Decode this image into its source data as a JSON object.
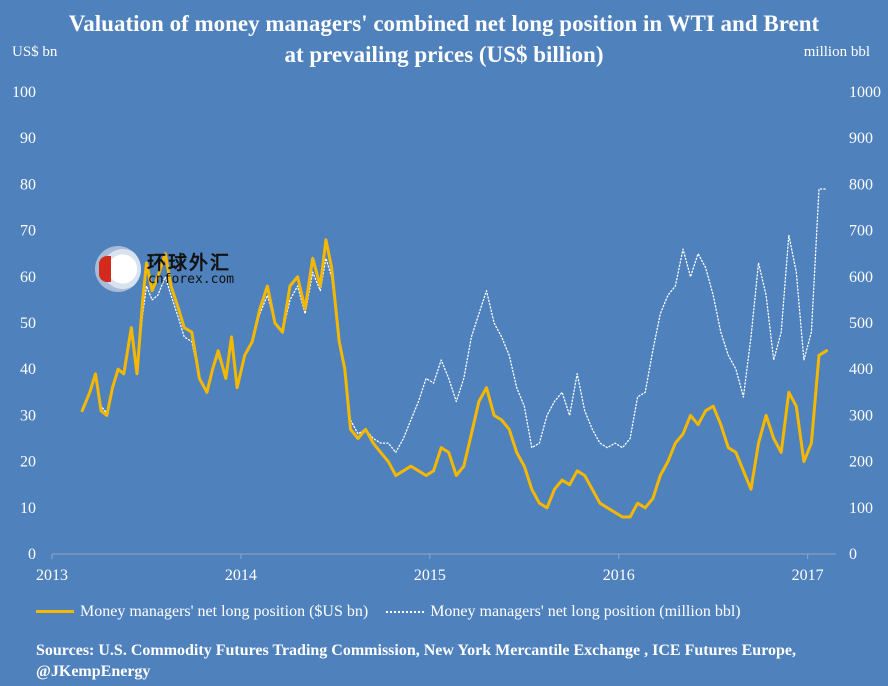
{
  "chart_data": {
    "type": "line",
    "title": "Valuation of money managers' combined net long position in WTI and Brent at prevailing prices (US$ billion)",
    "ylabel_left": "US$ bn",
    "ylabel_right": "million bbl",
    "ylim_left": [
      0,
      100
    ],
    "ylim_right": [
      0,
      1000
    ],
    "yticks_left": [
      "0",
      "10",
      "20",
      "30",
      "40",
      "50",
      "60",
      "70",
      "80",
      "90",
      "100"
    ],
    "yticks_right": [
      "0",
      "100",
      "200",
      "300",
      "400",
      "500",
      "600",
      "700",
      "800",
      "900",
      "1000"
    ],
    "xlim": [
      2013.0,
      2017.15
    ],
    "xticks": [
      "2013",
      "2014",
      "2015",
      "2016",
      "2017"
    ],
    "grid": false,
    "legend_position": "bottom",
    "series": [
      {
        "name": "Money managers' net long position ($US bn)",
        "axis": "left",
        "color": "#f5b800",
        "x": [
          2013.16,
          2013.2,
          2013.23,
          2013.26,
          2013.29,
          2013.32,
          2013.35,
          2013.38,
          2013.42,
          2013.45,
          2013.48,
          2013.5,
          2013.53,
          2013.56,
          2013.6,
          2013.63,
          2013.67,
          2013.7,
          2013.74,
          2013.78,
          2013.82,
          2013.85,
          2013.88,
          2013.92,
          2013.95,
          2013.98,
          2014.02,
          2014.06,
          2014.1,
          2014.14,
          2014.18,
          2014.22,
          2014.26,
          2014.3,
          2014.34,
          2014.38,
          2014.42,
          2014.45,
          2014.48,
          2014.52,
          2014.55,
          2014.58,
          2014.62,
          2014.66,
          2014.7,
          2014.74,
          2014.78,
          2014.82,
          2014.86,
          2014.9,
          2014.94,
          2014.98,
          2015.02,
          2015.06,
          2015.1,
          2015.14,
          2015.18,
          2015.22,
          2015.26,
          2015.3,
          2015.34,
          2015.38,
          2015.42,
          2015.46,
          2015.5,
          2015.54,
          2015.58,
          2015.62,
          2015.66,
          2015.7,
          2015.74,
          2015.78,
          2015.82,
          2015.86,
          2015.9,
          2015.94,
          2015.98,
          2016.02,
          2016.06,
          2016.1,
          2016.14,
          2016.18,
          2016.22,
          2016.26,
          2016.3,
          2016.34,
          2016.38,
          2016.42,
          2016.46,
          2016.5,
          2016.54,
          2016.58,
          2016.62,
          2016.66,
          2016.7,
          2016.74,
          2016.78,
          2016.82,
          2016.86,
          2016.9,
          2016.94,
          2016.98,
          2017.02,
          2017.06,
          2017.1
        ],
        "values": [
          31,
          35,
          39,
          31,
          30,
          36,
          40,
          39,
          49,
          39,
          55,
          63,
          57,
          60,
          65,
          58,
          53,
          49,
          48,
          38,
          35,
          40,
          44,
          38,
          47,
          36,
          43,
          46,
          53,
          58,
          50,
          48,
          58,
          60,
          53,
          64,
          58,
          68,
          62,
          46,
          40,
          27,
          25,
          27,
          24,
          22,
          20,
          17,
          18,
          19,
          18,
          17,
          18,
          23,
          22,
          17,
          19,
          26,
          33,
          36,
          30,
          29,
          27,
          22,
          19,
          14,
          11,
          10,
          14,
          16,
          15,
          18,
          17,
          14,
          11,
          10,
          9,
          8,
          8,
          11,
          10,
          12,
          17,
          20,
          24,
          26,
          30,
          28,
          31,
          32,
          28,
          23,
          22,
          18,
          14,
          24,
          30,
          25,
          22,
          35,
          32,
          20,
          24,
          43,
          44
        ]
      },
      {
        "name": "Money managers' net long position (million bbl)",
        "axis": "right",
        "color": "#ffffff",
        "x": [
          2013.16,
          2013.2,
          2013.23,
          2013.26,
          2013.29,
          2013.32,
          2013.35,
          2013.38,
          2013.42,
          2013.45,
          2013.48,
          2013.5,
          2013.53,
          2013.56,
          2013.6,
          2013.63,
          2013.67,
          2013.7,
          2013.74,
          2013.78,
          2013.82,
          2013.85,
          2013.88,
          2013.92,
          2013.95,
          2013.98,
          2014.02,
          2014.06,
          2014.1,
          2014.14,
          2014.18,
          2014.22,
          2014.26,
          2014.3,
          2014.34,
          2014.38,
          2014.42,
          2014.45,
          2014.48,
          2014.52,
          2014.55,
          2014.58,
          2014.62,
          2014.66,
          2014.7,
          2014.74,
          2014.78,
          2014.82,
          2014.86,
          2014.9,
          2014.94,
          2014.98,
          2015.02,
          2015.06,
          2015.1,
          2015.14,
          2015.18,
          2015.22,
          2015.26,
          2015.3,
          2015.34,
          2015.38,
          2015.42,
          2015.46,
          2015.5,
          2015.54,
          2015.58,
          2015.62,
          2015.66,
          2015.7,
          2015.74,
          2015.78,
          2015.82,
          2015.86,
          2015.9,
          2015.94,
          2015.98,
          2016.02,
          2016.06,
          2016.1,
          2016.14,
          2016.18,
          2016.22,
          2016.26,
          2016.3,
          2016.34,
          2016.38,
          2016.42,
          2016.46,
          2016.5,
          2016.54,
          2016.58,
          2016.62,
          2016.66,
          2016.7,
          2016.74,
          2016.78,
          2016.82,
          2016.86,
          2016.9,
          2016.94,
          2016.98,
          2017.02,
          2017.06,
          2017.1
        ],
        "values": [
          315,
          350,
          385,
          320,
          305,
          365,
          400,
          390,
          480,
          400,
          520,
          580,
          550,
          560,
          600,
          560,
          510,
          470,
          460,
          380,
          350,
          400,
          430,
          380,
          460,
          360,
          430,
          460,
          520,
          560,
          500,
          480,
          550,
          580,
          520,
          610,
          570,
          640,
          600,
          460,
          400,
          290,
          260,
          270,
          250,
          240,
          240,
          220,
          250,
          290,
          330,
          380,
          370,
          420,
          380,
          330,
          380,
          470,
          520,
          570,
          500,
          470,
          430,
          360,
          320,
          230,
          240,
          300,
          330,
          350,
          300,
          390,
          310,
          270,
          240,
          230,
          240,
          230,
          250,
          340,
          350,
          440,
          520,
          560,
          580,
          660,
          600,
          650,
          620,
          560,
          480,
          430,
          400,
          340,
          470,
          630,
          560,
          420,
          480,
          690,
          610,
          420,
          480,
          790,
          790
        ]
      }
    ]
  },
  "units": {
    "left": "US$ bn",
    "right": "million bbl"
  },
  "legend": {
    "items": [
      "Money managers' net long position ($US bn)",
      "Money managers' net long position (million bbl)"
    ]
  },
  "sources": "Sources: U.S. Commodity Futures Trading Commission, New York Mercantile Exchange , ICE Futures Europe, @JKempEnergy",
  "watermark": {
    "cn": "环球外汇",
    "en": "cnforex.com"
  }
}
